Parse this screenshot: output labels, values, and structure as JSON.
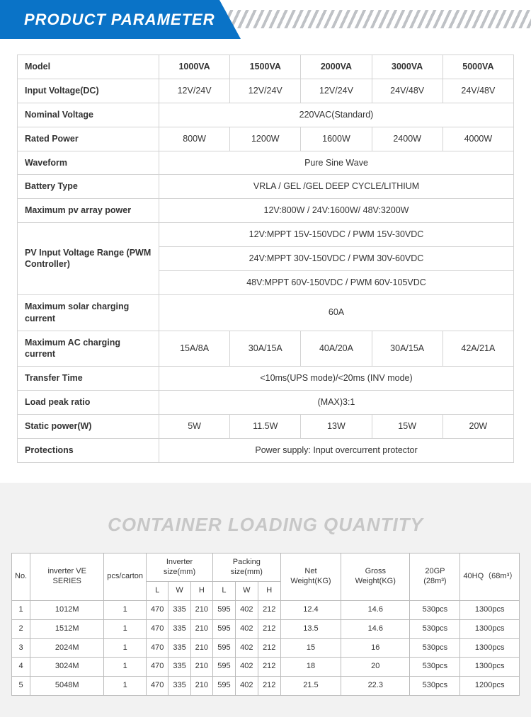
{
  "banner": {
    "title": "PRODUCT PARAMETER"
  },
  "param": {
    "col_label": "Model",
    "models": [
      "1000VA",
      "1500VA",
      "2000VA",
      "3000VA",
      "5000VA"
    ],
    "rows": [
      {
        "label": "Input Voltage(DC)",
        "cells": [
          "12V/24V",
          "12V/24V",
          "12V/24V",
          "24V/48V",
          "24V/48V"
        ]
      },
      {
        "label": "Nominal Voltage",
        "span": "220VAC(Standard)"
      },
      {
        "label": "Rated Power",
        "cells": [
          "800W",
          "1200W",
          "1600W",
          "2400W",
          "4000W"
        ]
      },
      {
        "label": "Waveform",
        "span": "Pure Sine Wave"
      },
      {
        "label": "Battery Type",
        "span": "VRLA / GEL /GEL DEEP CYCLE/LITHIUM"
      },
      {
        "label": "Maximum pv array power",
        "span": "12V:800W / 24V:1600W/ 48V:3200W"
      },
      {
        "label": "PV Input Voltage Range (PWM Controller)",
        "multispan": [
          "12V:MPPT 15V-150VDC / PWM 15V-30VDC",
          "24V:MPPT 30V-150VDC / PWM 30V-60VDC",
          "48V:MPPT 60V-150VDC / PWM 60V-105VDC"
        ]
      },
      {
        "label": "Maximum solar charging current",
        "span": "60A"
      },
      {
        "label": "Maximum AC charging current",
        "cells": [
          "15A/8A",
          "30A/15A",
          "40A/20A",
          "30A/15A",
          "42A/21A"
        ]
      },
      {
        "label": "Transfer Time",
        "span": "<10ms(UPS mode)/<20ms (INV mode)"
      },
      {
        "label": "Load peak ratio",
        "span": "(MAX)3:1"
      },
      {
        "label": "Static power(W)",
        "cells": [
          "5W",
          "11.5W",
          "13W",
          "15W",
          "20W"
        ]
      },
      {
        "label": "Protections",
        "span": "Power supply: Input overcurrent protector"
      }
    ]
  },
  "container": {
    "title": "CONTAINER LOADING QUANTITY",
    "head1": {
      "no": "No.",
      "series": "inverter VE SERIES",
      "pcs": "pcs/carton",
      "inv_size": "Inverter size(mm)",
      "pkg_size": "Packing size(mm)",
      "net": "Net Weight(KG)",
      "gross": "Gross Weight(KG)",
      "gp20": "20GP (28m³)",
      "hq40": "40HQ（68m³）"
    },
    "head2": {
      "L": "L",
      "W": "W",
      "H": "H"
    },
    "rows": [
      {
        "no": "1",
        "series": "1012M",
        "pcs": "1",
        "iL": "470",
        "iW": "335",
        "iH": "210",
        "pL": "595",
        "pW": "402",
        "pH": "212",
        "net": "12.4",
        "gross": "14.6",
        "gp": "530pcs",
        "hq": "1300pcs"
      },
      {
        "no": "2",
        "series": "1512M",
        "pcs": "1",
        "iL": "470",
        "iW": "335",
        "iH": "210",
        "pL": "595",
        "pW": "402",
        "pH": "212",
        "net": "13.5",
        "gross": "14.6",
        "gp": "530pcs",
        "hq": "1300pcs"
      },
      {
        "no": "3",
        "series": "2024M",
        "pcs": "1",
        "iL": "470",
        "iW": "335",
        "iH": "210",
        "pL": "595",
        "pW": "402",
        "pH": "212",
        "net": "15",
        "gross": "16",
        "gp": "530pcs",
        "hq": "1300pcs"
      },
      {
        "no": "4",
        "series": "3024M",
        "pcs": "1",
        "iL": "470",
        "iW": "335",
        "iH": "210",
        "pL": "595",
        "pW": "402",
        "pH": "212",
        "net": "18",
        "gross": "20",
        "gp": "530pcs",
        "hq": "1300pcs"
      },
      {
        "no": "5",
        "series": "5048M",
        "pcs": "1",
        "iL": "470",
        "iW": "335",
        "iH": "210",
        "pL": "595",
        "pW": "402",
        "pH": "212",
        "net": "21.5",
        "gross": "22.3",
        "gp": "530pcs",
        "hq": "1200pcs"
      }
    ]
  }
}
